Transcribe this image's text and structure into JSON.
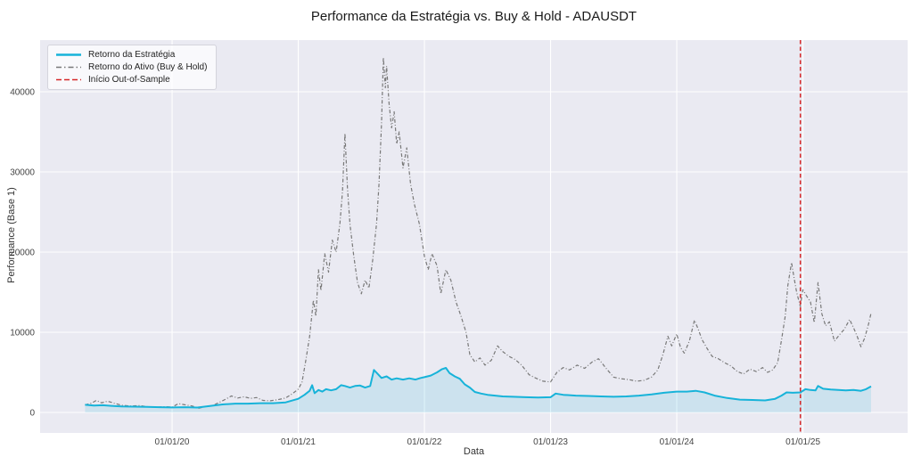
{
  "title": "Performance da Estratégia vs. Buy & Hold - ADAUSDT",
  "chart_data": {
    "type": "line",
    "title": "Performance da Estratégia vs. Buy & Hold - ADAUSDT",
    "xlabel": "Data",
    "ylabel": "Performance (Base 1)",
    "background_color": "#eaeaf2",
    "grid": true,
    "grid_color": "#ffffff",
    "legend_position": "upper left",
    "x_tick_labels": [
      "01/01/20",
      "01/01/21",
      "01/01/22",
      "01/01/23",
      "01/01/24",
      "01/01/25"
    ],
    "x_tick_years": [
      2020,
      2021,
      2022,
      2023,
      2024,
      2025
    ],
    "y_ticks": [
      0,
      10000,
      20000,
      30000,
      40000
    ],
    "x_range_years": [
      2018.954,
      2025.83
    ],
    "y_range": [
      -2556,
      46444
    ],
    "series": [
      {
        "name": "Retorno do Ativo (Buy & Hold)",
        "color": "#787878",
        "style": "dashdot",
        "width": 1.2,
        "fill": false,
        "points": [
          [
            2019.31,
            950
          ],
          [
            2019.36,
            1150
          ],
          [
            2019.4,
            1500
          ],
          [
            2019.44,
            1200
          ],
          [
            2019.49,
            1400
          ],
          [
            2019.54,
            1150
          ],
          [
            2019.6,
            900
          ],
          [
            2019.67,
            800
          ],
          [
            2019.74,
            850
          ],
          [
            2019.81,
            700
          ],
          [
            2019.88,
            650
          ],
          [
            2019.95,
            720
          ],
          [
            2020.0,
            660
          ],
          [
            2020.05,
            1100
          ],
          [
            2020.1,
            950
          ],
          [
            2020.16,
            800
          ],
          [
            2020.21,
            520
          ],
          [
            2020.26,
            700
          ],
          [
            2020.32,
            850
          ],
          [
            2020.38,
            1300
          ],
          [
            2020.43,
            1700
          ],
          [
            2020.47,
            2050
          ],
          [
            2020.52,
            1800
          ],
          [
            2020.57,
            1950
          ],
          [
            2020.62,
            1750
          ],
          [
            2020.67,
            1850
          ],
          [
            2020.72,
            1500
          ],
          [
            2020.78,
            1450
          ],
          [
            2020.84,
            1600
          ],
          [
            2020.9,
            1800
          ],
          [
            2020.95,
            2300
          ],
          [
            2021.0,
            2900
          ],
          [
            2021.03,
            3800
          ],
          [
            2021.06,
            6500
          ],
          [
            2021.09,
            9500
          ],
          [
            2021.12,
            14000
          ],
          [
            2021.14,
            12000
          ],
          [
            2021.16,
            17800
          ],
          [
            2021.18,
            15200
          ],
          [
            2021.21,
            19800
          ],
          [
            2021.24,
            17500
          ],
          [
            2021.27,
            21500
          ],
          [
            2021.3,
            20000
          ],
          [
            2021.33,
            23500
          ],
          [
            2021.35,
            27500
          ],
          [
            2021.37,
            34800
          ],
          [
            2021.39,
            28000
          ],
          [
            2021.41,
            23500
          ],
          [
            2021.44,
            19500
          ],
          [
            2021.47,
            16200
          ],
          [
            2021.5,
            14800
          ],
          [
            2021.53,
            16500
          ],
          [
            2021.56,
            15500
          ],
          [
            2021.59,
            19000
          ],
          [
            2021.62,
            23500
          ],
          [
            2021.64,
            28500
          ],
          [
            2021.66,
            36000
          ],
          [
            2021.675,
            44300
          ],
          [
            2021.69,
            40500
          ],
          [
            2021.7,
            43200
          ],
          [
            2021.72,
            38500
          ],
          [
            2021.74,
            35500
          ],
          [
            2021.76,
            37500
          ],
          [
            2021.78,
            33500
          ],
          [
            2021.8,
            35000
          ],
          [
            2021.83,
            30500
          ],
          [
            2021.86,
            33000
          ],
          [
            2021.89,
            28500
          ],
          [
            2021.92,
            26000
          ],
          [
            2021.96,
            23500
          ],
          [
            2022.0,
            19500
          ],
          [
            2022.03,
            17800
          ],
          [
            2022.06,
            19800
          ],
          [
            2022.1,
            18300
          ],
          [
            2022.13,
            14800
          ],
          [
            2022.17,
            17800
          ],
          [
            2022.21,
            16500
          ],
          [
            2022.25,
            13800
          ],
          [
            2022.29,
            12000
          ],
          [
            2022.33,
            10000
          ],
          [
            2022.36,
            7200
          ],
          [
            2022.4,
            6300
          ],
          [
            2022.44,
            6800
          ],
          [
            2022.48,
            5900
          ],
          [
            2022.53,
            6500
          ],
          [
            2022.58,
            8300
          ],
          [
            2022.62,
            7600
          ],
          [
            2022.67,
            7000
          ],
          [
            2022.72,
            6600
          ],
          [
            2022.77,
            5900
          ],
          [
            2022.83,
            4700
          ],
          [
            2022.88,
            4300
          ],
          [
            2022.94,
            3900
          ],
          [
            2023.0,
            3800
          ],
          [
            2023.05,
            5000
          ],
          [
            2023.1,
            5600
          ],
          [
            2023.15,
            5300
          ],
          [
            2023.21,
            5900
          ],
          [
            2023.27,
            5500
          ],
          [
            2023.33,
            6300
          ],
          [
            2023.38,
            6700
          ],
          [
            2023.44,
            5500
          ],
          [
            2023.5,
            4400
          ],
          [
            2023.56,
            4200
          ],
          [
            2023.62,
            4100
          ],
          [
            2023.68,
            3900
          ],
          [
            2023.74,
            4000
          ],
          [
            2023.8,
            4400
          ],
          [
            2023.85,
            5300
          ],
          [
            2023.89,
            7200
          ],
          [
            2023.93,
            9500
          ],
          [
            2023.96,
            8300
          ],
          [
            2024.0,
            9800
          ],
          [
            2024.03,
            8100
          ],
          [
            2024.06,
            7400
          ],
          [
            2024.1,
            8900
          ],
          [
            2024.14,
            11500
          ],
          [
            2024.17,
            10400
          ],
          [
            2024.2,
            9100
          ],
          [
            2024.24,
            8000
          ],
          [
            2024.28,
            7000
          ],
          [
            2024.33,
            6700
          ],
          [
            2024.38,
            6200
          ],
          [
            2024.43,
            5800
          ],
          [
            2024.48,
            5100
          ],
          [
            2024.53,
            4800
          ],
          [
            2024.58,
            5400
          ],
          [
            2024.63,
            5100
          ],
          [
            2024.68,
            5600
          ],
          [
            2024.72,
            5000
          ],
          [
            2024.76,
            5300
          ],
          [
            2024.8,
            6200
          ],
          [
            2024.83,
            9000
          ],
          [
            2024.86,
            12000
          ],
          [
            2024.88,
            15800
          ],
          [
            2024.91,
            18700
          ],
          [
            2024.93,
            16800
          ],
          [
            2024.95,
            15000
          ],
          [
            2024.98,
            13200
          ],
          [
            2025.0,
            15300
          ],
          [
            2025.03,
            14500
          ],
          [
            2025.06,
            13800
          ],
          [
            2025.09,
            11200
          ],
          [
            2025.12,
            16200
          ],
          [
            2025.15,
            12300
          ],
          [
            2025.18,
            10800
          ],
          [
            2025.21,
            11300
          ],
          [
            2025.25,
            8900
          ],
          [
            2025.29,
            9700
          ],
          [
            2025.33,
            10400
          ],
          [
            2025.37,
            11600
          ],
          [
            2025.4,
            10600
          ],
          [
            2025.43,
            9500
          ],
          [
            2025.46,
            8200
          ],
          [
            2025.49,
            9300
          ],
          [
            2025.52,
            11000
          ],
          [
            2025.54,
            12400
          ]
        ]
      },
      {
        "name": "Retorno da Estratégia",
        "color": "#17b3d9",
        "style": "solid",
        "width": 2,
        "fill": true,
        "fill_opacity": 0.14,
        "points": [
          [
            2019.31,
            950
          ],
          [
            2019.38,
            850
          ],
          [
            2019.45,
            900
          ],
          [
            2019.52,
            820
          ],
          [
            2019.6,
            760
          ],
          [
            2019.7,
            720
          ],
          [
            2019.8,
            700
          ],
          [
            2019.9,
            660
          ],
          [
            2020.0,
            620
          ],
          [
            2020.1,
            650
          ],
          [
            2020.2,
            610
          ],
          [
            2020.3,
            800
          ],
          [
            2020.4,
            1000
          ],
          [
            2020.5,
            1100
          ],
          [
            2020.6,
            1100
          ],
          [
            2020.7,
            1150
          ],
          [
            2020.8,
            1150
          ],
          [
            2020.9,
            1250
          ],
          [
            2021.0,
            1700
          ],
          [
            2021.05,
            2200
          ],
          [
            2021.09,
            2700
          ],
          [
            2021.11,
            3400
          ],
          [
            2021.13,
            2400
          ],
          [
            2021.16,
            2800
          ],
          [
            2021.19,
            2600
          ],
          [
            2021.22,
            2900
          ],
          [
            2021.26,
            2750
          ],
          [
            2021.3,
            2900
          ],
          [
            2021.34,
            3400
          ],
          [
            2021.37,
            3300
          ],
          [
            2021.41,
            3100
          ],
          [
            2021.45,
            3300
          ],
          [
            2021.49,
            3350
          ],
          [
            2021.53,
            3100
          ],
          [
            2021.57,
            3300
          ],
          [
            2021.6,
            5300
          ],
          [
            2021.63,
            4800
          ],
          [
            2021.66,
            4300
          ],
          [
            2021.7,
            4500
          ],
          [
            2021.74,
            4100
          ],
          [
            2021.78,
            4250
          ],
          [
            2021.83,
            4100
          ],
          [
            2021.88,
            4250
          ],
          [
            2021.93,
            4100
          ],
          [
            2021.97,
            4300
          ],
          [
            2022.0,
            4400
          ],
          [
            2022.05,
            4600
          ],
          [
            2022.1,
            5000
          ],
          [
            2022.14,
            5400
          ],
          [
            2022.17,
            5550
          ],
          [
            2022.2,
            4900
          ],
          [
            2022.24,
            4500
          ],
          [
            2022.28,
            4200
          ],
          [
            2022.32,
            3500
          ],
          [
            2022.36,
            3100
          ],
          [
            2022.4,
            2550
          ],
          [
            2022.45,
            2350
          ],
          [
            2022.5,
            2200
          ],
          [
            2022.56,
            2100
          ],
          [
            2022.62,
            2000
          ],
          [
            2022.7,
            1950
          ],
          [
            2022.8,
            1900
          ],
          [
            2022.9,
            1850
          ],
          [
            2023.0,
            1900
          ],
          [
            2023.04,
            2350
          ],
          [
            2023.1,
            2200
          ],
          [
            2023.2,
            2100
          ],
          [
            2023.3,
            2050
          ],
          [
            2023.4,
            2000
          ],
          [
            2023.5,
            1950
          ],
          [
            2023.6,
            2000
          ],
          [
            2023.7,
            2100
          ],
          [
            2023.8,
            2250
          ],
          [
            2023.9,
            2450
          ],
          [
            2024.0,
            2600
          ],
          [
            2024.08,
            2600
          ],
          [
            2024.15,
            2700
          ],
          [
            2024.22,
            2500
          ],
          [
            2024.3,
            2100
          ],
          [
            2024.4,
            1800
          ],
          [
            2024.5,
            1600
          ],
          [
            2024.6,
            1550
          ],
          [
            2024.7,
            1500
          ],
          [
            2024.78,
            1700
          ],
          [
            2024.83,
            2100
          ],
          [
            2024.87,
            2500
          ],
          [
            2024.92,
            2450
          ],
          [
            2024.98,
            2500
          ],
          [
            2025.02,
            2900
          ],
          [
            2025.06,
            2800
          ],
          [
            2025.1,
            2750
          ],
          [
            2025.12,
            3300
          ],
          [
            2025.16,
            2950
          ],
          [
            2025.22,
            2850
          ],
          [
            2025.28,
            2800
          ],
          [
            2025.34,
            2750
          ],
          [
            2025.4,
            2800
          ],
          [
            2025.46,
            2700
          ],
          [
            2025.5,
            2900
          ],
          [
            2025.54,
            3250
          ]
        ]
      }
    ],
    "vline": {
      "name": "Início Out-of-Sample",
      "color": "#d62728",
      "style": "dashed",
      "x_year": 2024.98
    },
    "legend_order": [
      "Retorno da Estratégia",
      "Retorno do Ativo (Buy & Hold)",
      "Início Out-of-Sample"
    ]
  }
}
